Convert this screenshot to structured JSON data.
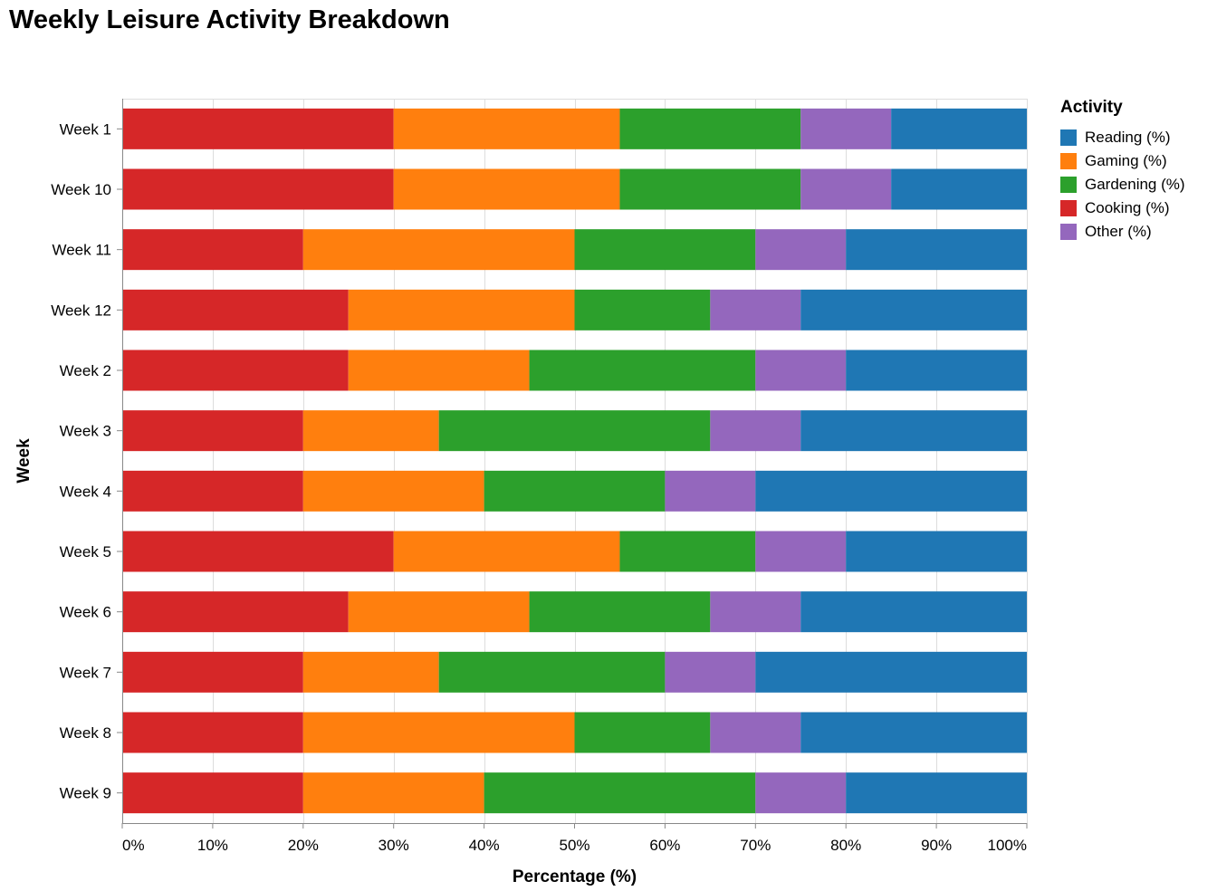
{
  "chart_data": {
    "type": "bar",
    "orientation": "horizontal",
    "stacked": true,
    "title": "Weekly Leisure Activity Breakdown",
    "xlabel": "Percentage (%)",
    "ylabel": "Week",
    "xlim": [
      0,
      100
    ],
    "x_ticks": [
      "0%",
      "10%",
      "20%",
      "30%",
      "40%",
      "50%",
      "60%",
      "70%",
      "80%",
      "90%",
      "100%"
    ],
    "grid": true,
    "legend_title": "Activity",
    "legend_position": "right",
    "categories": [
      "Week 1",
      "Week 10",
      "Week 11",
      "Week 12",
      "Week 2",
      "Week 3",
      "Week 4",
      "Week 5",
      "Week 6",
      "Week 7",
      "Week 8",
      "Week 9"
    ],
    "legend_order": [
      "Reading (%)",
      "Gaming (%)",
      "Gardening (%)",
      "Cooking (%)",
      "Other (%)"
    ],
    "series": [
      {
        "name": "Cooking (%)",
        "color": "#d62728",
        "values": [
          30,
          30,
          20,
          25,
          25,
          20,
          20,
          30,
          25,
          20,
          20,
          20
        ]
      },
      {
        "name": "Gaming (%)",
        "color": "#ff7f0e",
        "values": [
          25,
          25,
          30,
          25,
          20,
          15,
          20,
          25,
          20,
          15,
          30,
          20
        ]
      },
      {
        "name": "Gardening (%)",
        "color": "#2ca02c",
        "values": [
          20,
          20,
          20,
          15,
          25,
          30,
          20,
          15,
          20,
          25,
          15,
          30
        ]
      },
      {
        "name": "Other (%)",
        "color": "#9467bd",
        "values": [
          10,
          10,
          10,
          10,
          10,
          10,
          10,
          10,
          10,
          10,
          10,
          10
        ]
      },
      {
        "name": "Reading (%)",
        "color": "#1f77b4",
        "values": [
          15,
          15,
          20,
          25,
          20,
          25,
          30,
          20,
          25,
          30,
          25,
          20
        ]
      }
    ]
  }
}
